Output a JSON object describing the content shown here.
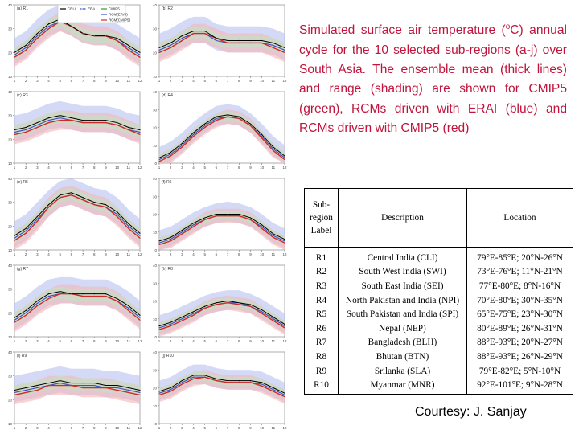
{
  "caption": {
    "text_before_unit": "Simulated surface air temperature (",
    "unit_sup": "o",
    "text_after_unit": "C) annual cycle for the 10 selected sub-regions (a-j) over South Asia.  The ensemble mean (thick lines) and range (shading) are shown for CMIP5 (green), RCMs driven with ERAI (blue) and RCMs driven with CMIP5 (red)"
  },
  "table": {
    "headers": [
      "Sub-region Label",
      "Description",
      "Location"
    ],
    "rows": [
      [
        "R1",
        "Central India (CLI)",
        "79°E-85°E; 20°N-26°N"
      ],
      [
        "R2",
        "South West India (SWI)",
        "73°E-76°E; 11°N-21°N"
      ],
      [
        "R3",
        "South East India (SEI)",
        "77°E-80°E; 8°N-16°N"
      ],
      [
        "R4",
        "North Pakistan and India (NPI)",
        "70°E-80°E; 30°N-35°N"
      ],
      [
        "R5",
        "South Pakistan and India (SPI)",
        "65°E-75°E; 23°N-30°N"
      ],
      [
        "R6",
        "Nepal (NEP)",
        "80°E-89°E; 26°N-31°N"
      ],
      [
        "R7",
        "Bangladesh (BLH)",
        "88°E-93°E; 20°N-27°N"
      ],
      [
        "R8",
        "Bhutan (BTN)",
        "88°E-93°E; 26°N-29°N"
      ],
      [
        "R9",
        "Srilanka (SLA)",
        "79°E-82°E; 5°N-10°N"
      ],
      [
        "R10",
        "Myanmar (MNR)",
        "92°E-101°E; 9°N-28°N"
      ]
    ]
  },
  "courtesy": "Courtesy: J. Sanjay",
  "colors": {
    "caption": "#c0143c",
    "obs_line": "#000000",
    "era_line": "#3a4fc4",
    "cmip5_line": "#2ca02c",
    "rcm_cmip5_line": "#d62728",
    "band_blue": "#b8bff0",
    "band_red": "#f4b6b8",
    "band_green": "#bfe6bf"
  },
  "legend": [
    "CRU",
    "ERA",
    "CMIP5",
    "RCM(ERAI)",
    "RCM(CMIP5)"
  ],
  "chart_data": [
    {
      "type": "line",
      "panel_label": "(a) R1",
      "x": [
        1,
        2,
        3,
        4,
        5,
        6,
        7,
        8,
        9,
        10,
        11,
        12
      ],
      "ylim": [
        10,
        40
      ],
      "yticks": [
        10,
        20,
        30,
        40
      ],
      "series": [
        {
          "name": "CRU",
          "values": [
            20,
            23,
            28,
            32,
            34,
            31,
            28,
            27,
            27,
            26,
            23,
            20
          ]
        },
        {
          "name": "RCM(ERAI)",
          "values": [
            19,
            22,
            27,
            31,
            33,
            31,
            28,
            27,
            27,
            25,
            22,
            19
          ]
        },
        {
          "name": "RCM(CMIP5)",
          "values": [
            18,
            21,
            26,
            30,
            33,
            31,
            28,
            27,
            27,
            25,
            21,
            18
          ]
        }
      ]
    },
    {
      "type": "line",
      "panel_label": "(b) R2",
      "x": [
        1,
        2,
        3,
        4,
        5,
        6,
        7,
        8,
        9,
        10,
        11,
        12
      ],
      "ylim": [
        10,
        40
      ],
      "yticks": [
        10,
        20,
        30,
        40
      ],
      "series": [
        {
          "name": "CRU",
          "values": [
            22,
            24,
            27,
            29,
            29,
            26,
            25,
            25,
            25,
            25,
            24,
            22
          ]
        },
        {
          "name": "RCM(ERAI)",
          "values": [
            21,
            23,
            26,
            28,
            28,
            25,
            24,
            24,
            24,
            24,
            23,
            21
          ]
        },
        {
          "name": "RCM(CMIP5)",
          "values": [
            20,
            22,
            25,
            28,
            28,
            26,
            24,
            24,
            24,
            24,
            22,
            20
          ]
        }
      ]
    },
    {
      "type": "line",
      "panel_label": "(c) R3",
      "x": [
        1,
        2,
        3,
        4,
        5,
        6,
        7,
        8,
        9,
        10,
        11,
        12
      ],
      "ylim": [
        10,
        40
      ],
      "yticks": [
        10,
        20,
        30,
        40
      ],
      "series": [
        {
          "name": "CRU",
          "values": [
            24,
            25,
            27,
            29,
            30,
            29,
            28,
            28,
            28,
            27,
            25,
            24
          ]
        },
        {
          "name": "RCM(ERAI)",
          "values": [
            23,
            24,
            26,
            28,
            29,
            28,
            27,
            27,
            27,
            26,
            24,
            23
          ]
        },
        {
          "name": "RCM(CMIP5)",
          "values": [
            22,
            23,
            25,
            27,
            28,
            28,
            27,
            27,
            27,
            26,
            24,
            22
          ]
        }
      ]
    },
    {
      "type": "line",
      "panel_label": "(d) R4",
      "x": [
        1,
        2,
        3,
        4,
        5,
        6,
        7,
        8,
        9,
        10,
        11,
        12
      ],
      "ylim": [
        0,
        40
      ],
      "yticks": [
        0,
        10,
        20,
        30,
        40
      ],
      "series": [
        {
          "name": "CRU",
          "values": [
            3,
            6,
            11,
            17,
            22,
            26,
            27,
            26,
            22,
            16,
            9,
            4
          ]
        },
        {
          "name": "RCM(ERAI)",
          "values": [
            2,
            5,
            10,
            16,
            21,
            25,
            26,
            25,
            21,
            15,
            8,
            3
          ]
        },
        {
          "name": "RCM(CMIP5)",
          "values": [
            1,
            4,
            9,
            15,
            20,
            24,
            26,
            25,
            21,
            14,
            7,
            2
          ]
        }
      ]
    },
    {
      "type": "line",
      "panel_label": "(e) R5",
      "x": [
        1,
        2,
        3,
        4,
        5,
        6,
        7,
        8,
        9,
        10,
        11,
        12
      ],
      "ylim": [
        10,
        40
      ],
      "yticks": [
        10,
        20,
        30,
        40
      ],
      "series": [
        {
          "name": "CRU",
          "values": [
            16,
            19,
            24,
            29,
            33,
            34,
            32,
            30,
            29,
            26,
            21,
            17
          ]
        },
        {
          "name": "RCM(ERAI)",
          "values": [
            15,
            18,
            23,
            28,
            32,
            33,
            31,
            29,
            28,
            25,
            20,
            16
          ]
        },
        {
          "name": "RCM(CMIP5)",
          "values": [
            14,
            17,
            22,
            28,
            32,
            33,
            31,
            29,
            28,
            24,
            19,
            15
          ]
        }
      ]
    },
    {
      "type": "line",
      "panel_label": "(f) R6",
      "x": [
        1,
        2,
        3,
        4,
        5,
        6,
        7,
        8,
        9,
        10,
        11,
        12
      ],
      "ylim": [
        0,
        40
      ],
      "yticks": [
        0,
        10,
        20,
        30,
        40
      ],
      "series": [
        {
          "name": "CRU",
          "values": [
            5,
            7,
            11,
            15,
            18,
            20,
            20,
            20,
            18,
            14,
            9,
            6
          ]
        },
        {
          "name": "RCM(ERAI)",
          "values": [
            4,
            6,
            10,
            14,
            17,
            19,
            20,
            19,
            17,
            13,
            8,
            5
          ]
        },
        {
          "name": "RCM(CMIP5)",
          "values": [
            3,
            5,
            9,
            13,
            17,
            19,
            19,
            19,
            17,
            12,
            7,
            4
          ]
        }
      ]
    },
    {
      "type": "line",
      "panel_label": "(g) R7",
      "x": [
        1,
        2,
        3,
        4,
        5,
        6,
        7,
        8,
        9,
        10,
        11,
        12
      ],
      "ylim": [
        10,
        40
      ],
      "yticks": [
        10,
        20,
        30,
        40
      ],
      "series": [
        {
          "name": "CRU",
          "values": [
            18,
            21,
            25,
            28,
            29,
            28,
            28,
            28,
            28,
            26,
            23,
            19
          ]
        },
        {
          "name": "RCM(ERAI)",
          "values": [
            17,
            20,
            24,
            27,
            28,
            28,
            27,
            27,
            27,
            25,
            22,
            18
          ]
        },
        {
          "name": "RCM(CMIP5)",
          "values": [
            16,
            19,
            23,
            26,
            28,
            28,
            27,
            27,
            27,
            25,
            21,
            17
          ]
        }
      ]
    },
    {
      "type": "line",
      "panel_label": "(h) R8",
      "x": [
        1,
        2,
        3,
        4,
        5,
        6,
        7,
        8,
        9,
        10,
        11,
        12
      ],
      "ylim": [
        0,
        40
      ],
      "yticks": [
        0,
        10,
        20,
        30,
        40
      ],
      "series": [
        {
          "name": "CRU",
          "values": [
            6,
            8,
            11,
            14,
            17,
            19,
            20,
            19,
            18,
            15,
            11,
            7
          ]
        },
        {
          "name": "RCM(ERAI)",
          "values": [
            5,
            7,
            10,
            13,
            16,
            18,
            19,
            19,
            17,
            14,
            10,
            6
          ]
        },
        {
          "name": "RCM(CMIP5)",
          "values": [
            4,
            6,
            9,
            12,
            16,
            18,
            19,
            18,
            17,
            13,
            9,
            5
          ]
        }
      ]
    },
    {
      "type": "line",
      "panel_label": "(i) R9",
      "x": [
        1,
        2,
        3,
        4,
        5,
        6,
        7,
        8,
        9,
        10,
        11,
        12
      ],
      "ylim": [
        10,
        40
      ],
      "yticks": [
        10,
        20,
        30,
        40
      ],
      "series": [
        {
          "name": "CRU",
          "values": [
            24,
            25,
            26,
            27,
            28,
            27,
            27,
            27,
            26,
            26,
            25,
            24
          ]
        },
        {
          "name": "RCM(ERAI)",
          "values": [
            23,
            24,
            25,
            26,
            27,
            26,
            26,
            26,
            25,
            25,
            24,
            23
          ]
        },
        {
          "name": "RCM(CMIP5)",
          "values": [
            22,
            23,
            24,
            26,
            26,
            26,
            25,
            25,
            25,
            24,
            23,
            22
          ]
        }
      ]
    },
    {
      "type": "line",
      "panel_label": "(j) R10",
      "x": [
        1,
        2,
        3,
        4,
        5,
        6,
        7,
        8,
        9,
        10,
        11,
        12
      ],
      "ylim": [
        0,
        40
      ],
      "yticks": [
        0,
        10,
        20,
        30,
        40
      ],
      "series": [
        {
          "name": "CRU",
          "values": [
            18,
            20,
            24,
            27,
            27,
            25,
            24,
            24,
            24,
            23,
            20,
            17
          ]
        },
        {
          "name": "RCM(ERAI)",
          "values": [
            17,
            19,
            23,
            26,
            26,
            24,
            23,
            23,
            23,
            22,
            19,
            16
          ]
        },
        {
          "name": "RCM(CMIP5)",
          "values": [
            16,
            18,
            22,
            25,
            26,
            24,
            23,
            23,
            23,
            21,
            18,
            15
          ]
        }
      ]
    }
  ]
}
